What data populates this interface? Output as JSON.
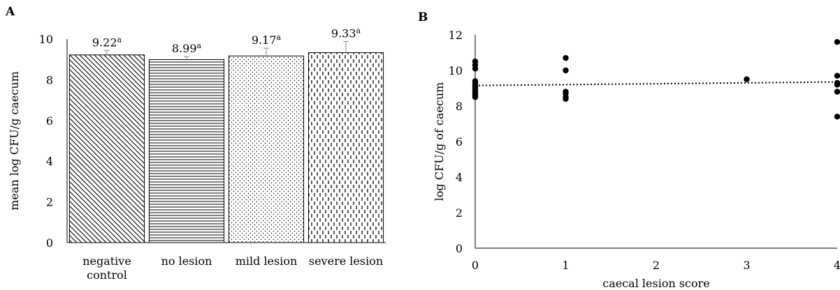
{
  "chart_data": [
    {
      "type": "bar",
      "panel": "A",
      "categories": [
        "negative control",
        "no lesion",
        "mild lesion",
        "severe lesion"
      ],
      "category_lines": [
        [
          "negative",
          "control"
        ],
        [
          "no lesion"
        ],
        [
          "mild lesion"
        ],
        [
          "severe lesion"
        ]
      ],
      "values": [
        9.22,
        8.99,
        9.17,
        9.33
      ],
      "errors": [
        0.22,
        0.15,
        0.38,
        0.55
      ],
      "data_labels": [
        "9.22",
        "8.99",
        "9.17",
        "9.33"
      ],
      "data_label_superscripts": [
        "a",
        "a",
        "a",
        "a"
      ],
      "patterns": [
        "diagonal-hatch",
        "horizontal-lines",
        "dots",
        "vertical-dashes"
      ],
      "title": "",
      "xlabel": "",
      "ylabel": "mean log CFU/g caecum",
      "ylim": [
        0,
        10
      ],
      "yticks": [
        0,
        2,
        4,
        6,
        8,
        10
      ],
      "grid": false
    },
    {
      "type": "scatter",
      "panel": "B",
      "x": [
        0,
        0,
        0,
        0,
        0,
        0,
        0,
        0,
        0,
        0,
        0,
        0,
        0,
        0,
        0,
        1,
        1,
        1,
        1,
        1,
        1,
        3,
        4,
        4,
        4,
        4,
        4,
        4
      ],
      "y": [
        10.5,
        10.3,
        10.1,
        9.4,
        9.3,
        9.2,
        9.1,
        9.0,
        8.9,
        8.8,
        8.7,
        8.65,
        8.6,
        8.55,
        8.5,
        10.7,
        10.0,
        8.8,
        8.7,
        8.5,
        8.4,
        9.5,
        11.6,
        9.7,
        9.3,
        9.2,
        8.8,
        7.4
      ],
      "trendline": {
        "style": "dotted",
        "x": [
          0,
          4
        ],
        "y": [
          9.15,
          9.35
        ]
      },
      "title": "",
      "xlabel": "caecal lesion score",
      "ylabel": "log CFU/g of caecum",
      "xlim": [
        0,
        4
      ],
      "ylim": [
        0,
        12
      ],
      "xticks": [
        0,
        1,
        2,
        3,
        4
      ],
      "yticks": [
        0,
        2,
        4,
        6,
        8,
        10,
        12
      ],
      "grid": false
    }
  ],
  "figure": {
    "panel_a_letter": "A",
    "panel_b_letter": "B"
  }
}
